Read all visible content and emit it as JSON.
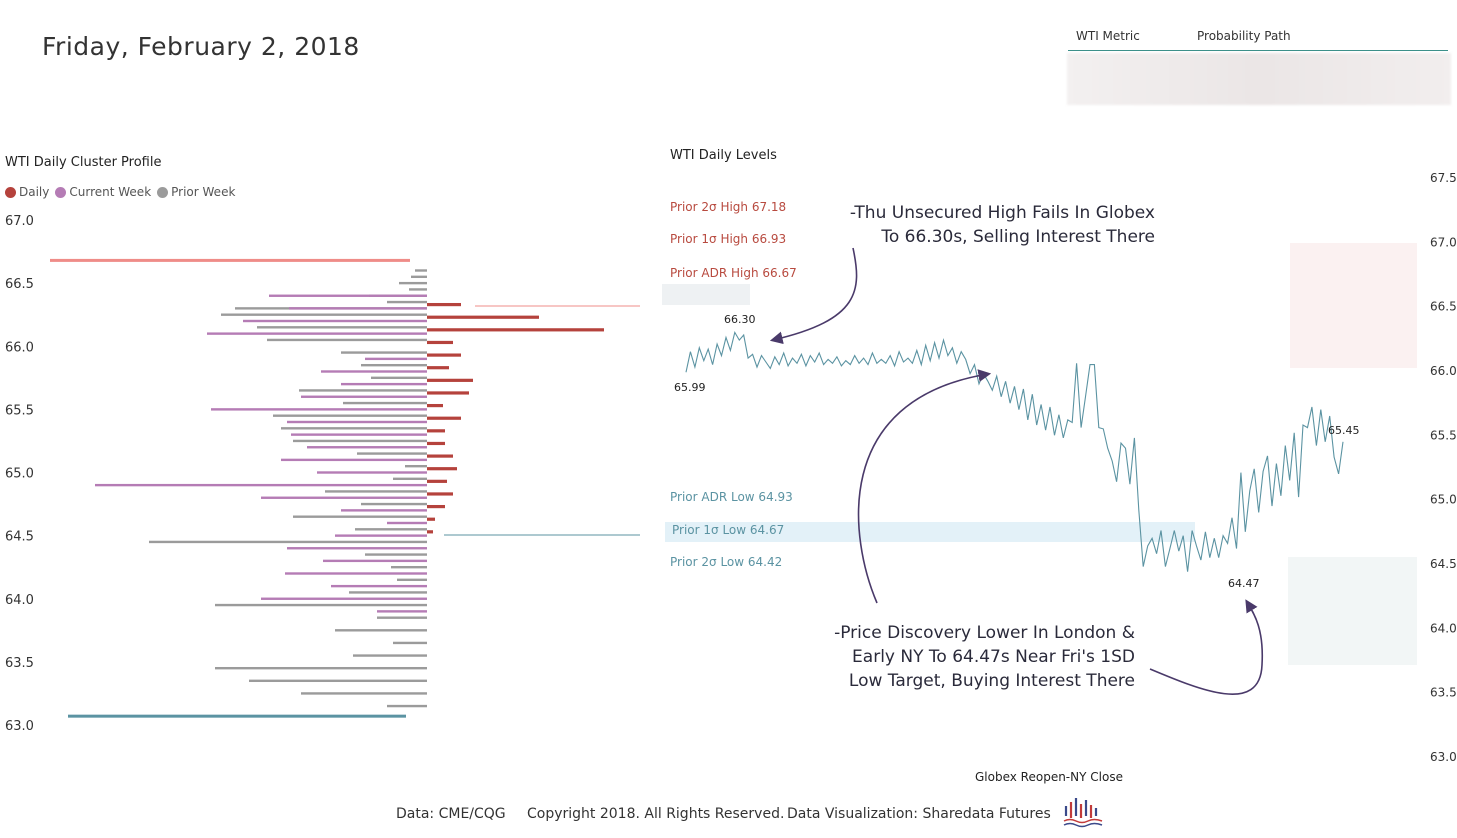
{
  "page": {
    "date": "Friday, February 2, 2018"
  },
  "metric_header": {
    "col1": "WTI Metric",
    "col2": "Probability Path"
  },
  "footer": {
    "source": "Data: CME/CQG",
    "copyright": "Copyright 2018. All Rights Reserved.",
    "credit": "Data Visualization: Sharedata Futures"
  },
  "colors": {
    "daily": "#b5423c",
    "current_week": "#b57cb5",
    "prior_week": "#9b9b9b",
    "high_line": "#ef8c88",
    "low_line": "#5b93a2",
    "price_line": "#5b93a2",
    "annotation": "#4a3a6a"
  },
  "chart_data": [
    {
      "type": "bar",
      "orientation": "horizontal",
      "title": "WTI Daily Cluster Profile",
      "legend": [
        {
          "name": "Daily",
          "color": "#b5423c"
        },
        {
          "name": "Current Week",
          "color": "#b57cb5"
        },
        {
          "name": "Prior Week",
          "color": "#9b9b9b"
        }
      ],
      "legend_placement": "top-left",
      "ylim": [
        63.0,
        67.0
      ],
      "yticks": [
        "67.0",
        "66.5",
        "66.0",
        "65.5",
        "65.0",
        "64.5",
        "64.0",
        "63.5",
        "63.0"
      ],
      "profile_high_marker": 66.68,
      "profile_low_marker": 63.07,
      "current_week": [
        {
          "price": 66.4,
          "value": 158
        },
        {
          "price": 66.3,
          "value": 138
        },
        {
          "price": 66.2,
          "value": 184
        },
        {
          "price": 66.1,
          "value": 220
        },
        {
          "price": 65.9,
          "value": 62
        },
        {
          "price": 65.8,
          "value": 106
        },
        {
          "price": 65.7,
          "value": 86
        },
        {
          "price": 65.6,
          "value": 126
        },
        {
          "price": 65.5,
          "value": 216
        },
        {
          "price": 65.4,
          "value": 140
        },
        {
          "price": 65.3,
          "value": 136
        },
        {
          "price": 65.2,
          "value": 120
        },
        {
          "price": 65.1,
          "value": 146
        },
        {
          "price": 65.0,
          "value": 110
        },
        {
          "price": 64.9,
          "value": 332
        },
        {
          "price": 64.8,
          "value": 166
        },
        {
          "price": 64.7,
          "value": 86
        },
        {
          "price": 64.6,
          "value": 40
        },
        {
          "price": 64.5,
          "value": 92
        },
        {
          "price": 64.4,
          "value": 140
        },
        {
          "price": 64.3,
          "value": 104
        },
        {
          "price": 64.2,
          "value": 142
        },
        {
          "price": 64.1,
          "value": 96
        },
        {
          "price": 64.0,
          "value": 166
        },
        {
          "price": 63.9,
          "value": 50
        }
      ],
      "prior_week": [
        {
          "price": 66.6,
          "value": 12
        },
        {
          "price": 66.55,
          "value": 16
        },
        {
          "price": 66.5,
          "value": 28
        },
        {
          "price": 66.45,
          "value": 18
        },
        {
          "price": 66.4,
          "value": 58
        },
        {
          "price": 66.35,
          "value": 40
        },
        {
          "price": 66.3,
          "value": 192
        },
        {
          "price": 66.25,
          "value": 206
        },
        {
          "price": 66.15,
          "value": 170
        },
        {
          "price": 66.05,
          "value": 160
        },
        {
          "price": 65.95,
          "value": 86
        },
        {
          "price": 65.85,
          "value": 66
        },
        {
          "price": 65.75,
          "value": 56
        },
        {
          "price": 65.65,
          "value": 128
        },
        {
          "price": 65.55,
          "value": 84
        },
        {
          "price": 65.45,
          "value": 154
        },
        {
          "price": 65.35,
          "value": 146
        },
        {
          "price": 65.25,
          "value": 134
        },
        {
          "price": 65.15,
          "value": 70
        },
        {
          "price": 65.05,
          "value": 22
        },
        {
          "price": 64.95,
          "value": 34
        },
        {
          "price": 64.85,
          "value": 102
        },
        {
          "price": 64.75,
          "value": 66
        },
        {
          "price": 64.65,
          "value": 134
        },
        {
          "price": 64.55,
          "value": 72
        },
        {
          "price": 64.45,
          "value": 278
        },
        {
          "price": 64.35,
          "value": 62
        },
        {
          "price": 64.25,
          "value": 36
        },
        {
          "price": 64.15,
          "value": 30
        },
        {
          "price": 64.05,
          "value": 78
        },
        {
          "price": 63.95,
          "value": 212
        },
        {
          "price": 63.85,
          "value": 50
        },
        {
          "price": 63.75,
          "value": 92
        },
        {
          "price": 63.65,
          "value": 34
        },
        {
          "price": 63.55,
          "value": 74
        },
        {
          "price": 63.45,
          "value": 212
        },
        {
          "price": 63.35,
          "value": 178
        },
        {
          "price": 63.25,
          "value": 126
        },
        {
          "price": 63.15,
          "value": 40
        }
      ],
      "daily": [
        {
          "price": 66.33,
          "value": 34
        },
        {
          "price": 66.23,
          "value": 112
        },
        {
          "price": 66.13,
          "value": 177
        },
        {
          "price": 66.03,
          "value": 26
        },
        {
          "price": 65.93,
          "value": 34
        },
        {
          "price": 65.83,
          "value": 22
        },
        {
          "price": 65.73,
          "value": 46
        },
        {
          "price": 65.63,
          "value": 42
        },
        {
          "price": 65.53,
          "value": 16
        },
        {
          "price": 65.43,
          "value": 34
        },
        {
          "price": 65.33,
          "value": 18
        },
        {
          "price": 65.23,
          "value": 18
        },
        {
          "price": 65.13,
          "value": 26
        },
        {
          "price": 65.03,
          "value": 30
        },
        {
          "price": 64.93,
          "value": 20
        },
        {
          "price": 64.83,
          "value": 26
        },
        {
          "price": 64.73,
          "value": 18
        },
        {
          "price": 64.63,
          "value": 8
        },
        {
          "price": 64.53,
          "value": 6
        }
      ]
    },
    {
      "type": "line",
      "title": "WTI Daily Levels",
      "xlabel": "Globex Reopen-NY Close",
      "ylim": [
        63.0,
        67.5
      ],
      "yticks": [
        "67.5",
        "67.0",
        "66.5",
        "66.0",
        "65.5",
        "65.0",
        "64.5",
        "64.0",
        "63.5",
        "63.0"
      ],
      "levels": [
        {
          "label": "Prior 2σ High 67.18",
          "value": 67.18,
          "side": "high"
        },
        {
          "label": "Prior 1σ High 66.93",
          "value": 66.93,
          "side": "high"
        },
        {
          "label": "Prior ADR High 66.67",
          "value": 66.67,
          "side": "high"
        },
        {
          "label": "Prior ADR Low 64.93",
          "value": 64.93,
          "side": "low"
        },
        {
          "label": "Prior 1σ Low 64.67",
          "value": 64.67,
          "side": "low"
        },
        {
          "label": "Prior 2σ Low 64.42",
          "value": 64.42,
          "side": "low"
        }
      ],
      "point_labels": [
        "65.99",
        "66.30",
        "64.47",
        "65.45"
      ],
      "annotations": [
        "-Thu Unsecured High Fails In Globex",
        "To 66.30s, Selling Interest There",
        "-Price Discovery Lower In London &",
        "Early NY To 64.47s Near Fri's 1SD",
        "Low Target, Buying Interest There"
      ],
      "series": [
        {
          "values": [
            65.99,
            66.15,
            66.03,
            66.18,
            66.08,
            66.17,
            66.05,
            66.21,
            66.12,
            66.26,
            66.16,
            66.3,
            66.24,
            66.28,
            66.1,
            66.13,
            66.03,
            66.12,
            66.07,
            66.02,
            66.11,
            66.05,
            66.14,
            66.04,
            66.1,
            66.06,
            66.13,
            66.04,
            66.12,
            66.07,
            66.14,
            66.05,
            66.09,
            66.06,
            66.11,
            66.04,
            66.08,
            66.05,
            66.12,
            66.06,
            66.1,
            66.05,
            66.14,
            66.06,
            66.09,
            66.06,
            66.12,
            66.04,
            66.15,
            66.07,
            66.1,
            66.06,
            66.16,
            66.05,
            66.2,
            66.08,
            66.22,
            66.1,
            66.24,
            66.12,
            66.18,
            66.06,
            66.15,
            66.09,
            65.98,
            66.05,
            65.9,
            65.98,
            65.92,
            65.85,
            65.96,
            65.8,
            65.92,
            65.75,
            65.88,
            65.7,
            65.86,
            65.62,
            65.82,
            65.58,
            65.74,
            65.54,
            65.72,
            65.5,
            65.66,
            65.48,
            65.62,
            65.6,
            66.06,
            65.56,
            65.8,
            66.05,
            66.05,
            65.56,
            65.55,
            65.4,
            65.3,
            65.14,
            65.44,
            65.4,
            65.12,
            65.48,
            64.92,
            64.48,
            64.64,
            64.7,
            64.58,
            64.76,
            64.48,
            64.62,
            64.76,
            64.6,
            64.72,
            64.44,
            64.76,
            64.64,
            64.53,
            64.75,
            64.55,
            64.7,
            64.55,
            64.72,
            64.66,
            64.86,
            64.62,
            65.21,
            64.75,
            65.07,
            65.24,
            64.9,
            65.22,
            65.34,
            64.95,
            65.28,
            65.03,
            65.42,
            65.15,
            65.52,
            65.02,
            65.58,
            65.56,
            65.72,
            65.42,
            65.7,
            65.45,
            65.65,
            65.33,
            65.2,
            65.45
          ]
        }
      ]
    }
  ]
}
